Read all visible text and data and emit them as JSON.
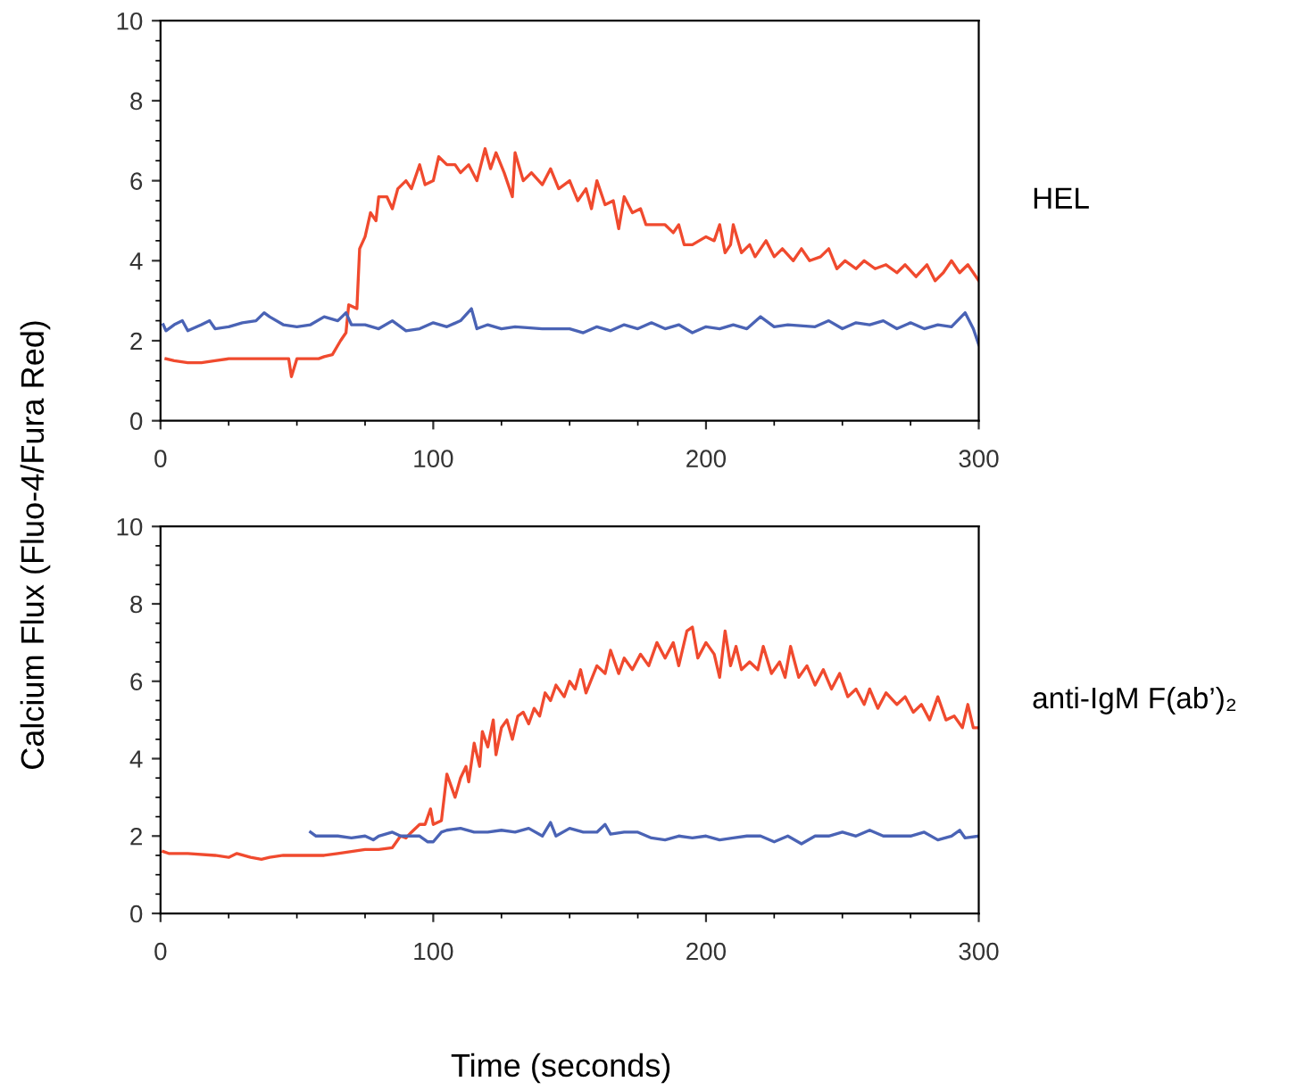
{
  "chart_data": [
    {
      "type": "line",
      "ylabel": "Calcium Flux (Fluo-4/Fura Red)",
      "annotations": [
        "HEL"
      ],
      "xlim": [
        0,
        300
      ],
      "xticks": [
        0,
        100,
        200,
        300
      ],
      "ylim": [
        0,
        10
      ],
      "yticks": [
        0,
        2,
        4,
        6,
        8,
        10
      ],
      "grid": false,
      "marker": "none",
      "line_style": "solid",
      "series": [
        {
          "color": "#f04a2e",
          "x": [
            2,
            5,
            10,
            15,
            20,
            25,
            30,
            40,
            47,
            48,
            50,
            58,
            60,
            63,
            66,
            68,
            69,
            72,
            73,
            75,
            77,
            79,
            80,
            83,
            85,
            87,
            90,
            92,
            95,
            97,
            100,
            102,
            105,
            108,
            110,
            113,
            116,
            119,
            121,
            123,
            126,
            129,
            130,
            133,
            136,
            140,
            143,
            146,
            150,
            153,
            156,
            158,
            160,
            163,
            166,
            168,
            170,
            173,
            176,
            178,
            181,
            185,
            188,
            190,
            192,
            195,
            200,
            203,
            205,
            207,
            209,
            210,
            213,
            216,
            218,
            222,
            225,
            228,
            232,
            235,
            238,
            242,
            245,
            248,
            251,
            255,
            258,
            262,
            266,
            270,
            273,
            277,
            281,
            284,
            287,
            290,
            293,
            296,
            300
          ],
          "values": [
            1.55,
            1.5,
            1.45,
            1.45,
            1.5,
            1.55,
            1.55,
            1.55,
            1.55,
            1.1,
            1.55,
            1.55,
            1.6,
            1.65,
            2.0,
            2.2,
            2.9,
            2.8,
            4.3,
            4.6,
            5.2,
            5.0,
            5.6,
            5.6,
            5.3,
            5.8,
            6.0,
            5.8,
            6.4,
            5.9,
            6.0,
            6.6,
            6.4,
            6.4,
            6.2,
            6.4,
            6.0,
            6.8,
            6.3,
            6.7,
            6.2,
            5.6,
            6.7,
            6.0,
            6.2,
            5.9,
            6.3,
            5.8,
            6.0,
            5.5,
            5.8,
            5.3,
            6.0,
            5.4,
            5.5,
            4.8,
            5.6,
            5.2,
            5.3,
            4.9,
            4.9,
            4.9,
            4.7,
            4.9,
            4.4,
            4.4,
            4.6,
            4.5,
            4.9,
            4.2,
            4.4,
            4.9,
            4.2,
            4.4,
            4.1,
            4.5,
            4.1,
            4.3,
            4.0,
            4.3,
            4.0,
            4.1,
            4.3,
            3.8,
            4.0,
            3.8,
            4.0,
            3.8,
            3.9,
            3.7,
            3.9,
            3.6,
            3.9,
            3.5,
            3.7,
            4.0,
            3.7,
            3.9,
            3.5
          ]
        },
        {
          "color": "#4a63b5",
          "x": [
            1,
            2,
            5,
            8,
            10,
            15,
            18,
            20,
            25,
            30,
            35,
            38,
            40,
            45,
            50,
            55,
            60,
            65,
            68,
            70,
            75,
            80,
            85,
            90,
            95,
            100,
            105,
            110,
            114,
            116,
            120,
            125,
            130,
            140,
            150,
            155,
            160,
            165,
            170,
            175,
            180,
            185,
            190,
            195,
            200,
            205,
            210,
            215,
            220,
            225,
            230,
            240,
            245,
            250,
            255,
            260,
            265,
            270,
            275,
            280,
            285,
            290,
            295,
            298,
            300
          ],
          "values": [
            2.4,
            2.25,
            2.4,
            2.5,
            2.25,
            2.4,
            2.5,
            2.3,
            2.35,
            2.45,
            2.5,
            2.7,
            2.6,
            2.4,
            2.35,
            2.4,
            2.6,
            2.5,
            2.7,
            2.4,
            2.4,
            2.3,
            2.5,
            2.25,
            2.3,
            2.45,
            2.35,
            2.5,
            2.8,
            2.3,
            2.4,
            2.3,
            2.35,
            2.3,
            2.3,
            2.2,
            2.35,
            2.25,
            2.4,
            2.3,
            2.45,
            2.3,
            2.4,
            2.2,
            2.35,
            2.3,
            2.4,
            2.3,
            2.6,
            2.35,
            2.4,
            2.35,
            2.5,
            2.3,
            2.45,
            2.4,
            2.5,
            2.3,
            2.45,
            2.3,
            2.4,
            2.35,
            2.7,
            2.3,
            1.9
          ]
        }
      ]
    },
    {
      "type": "line",
      "xlabel": "Time (seconds)",
      "annotations": [
        "anti-IgM F(ab’)₂"
      ],
      "xlim": [
        0,
        300
      ],
      "xticks": [
        0,
        100,
        200,
        300
      ],
      "ylim": [
        0,
        10
      ],
      "yticks": [
        0,
        2,
        4,
        6,
        8,
        10
      ],
      "grid": false,
      "marker": "none",
      "line_style": "solid",
      "series": [
        {
          "color": "#f04a2e",
          "x": [
            1,
            3,
            10,
            20,
            25,
            28,
            33,
            37,
            40,
            45,
            55,
            60,
            65,
            70,
            75,
            80,
            85,
            86,
            88,
            90,
            92,
            95,
            97,
            99,
            100,
            103,
            105,
            108,
            110,
            112,
            113,
            115,
            117,
            118,
            120,
            122,
            123,
            125,
            127,
            129,
            131,
            133,
            135,
            137,
            139,
            141,
            143,
            145,
            148,
            150,
            152,
            154,
            156,
            160,
            163,
            165,
            168,
            170,
            173,
            176,
            179,
            182,
            185,
            188,
            190,
            193,
            195,
            197,
            200,
            203,
            205,
            207,
            209,
            211,
            213,
            216,
            219,
            221,
            224,
            227,
            229,
            231,
            234,
            237,
            240,
            243,
            246,
            249,
            252,
            255,
            258,
            260,
            263,
            266,
            270,
            273,
            276,
            279,
            282,
            285,
            288,
            291,
            294,
            296,
            298,
            300
          ],
          "values": [
            1.6,
            1.55,
            1.55,
            1.5,
            1.45,
            1.55,
            1.45,
            1.4,
            1.45,
            1.5,
            1.5,
            1.5,
            1.55,
            1.6,
            1.65,
            1.65,
            1.7,
            1.8,
            2.0,
            1.95,
            2.1,
            2.3,
            2.3,
            2.7,
            2.3,
            2.4,
            3.6,
            3.0,
            3.5,
            3.8,
            3.4,
            4.4,
            3.8,
            4.7,
            4.3,
            5.0,
            4.1,
            4.8,
            5.0,
            4.5,
            5.1,
            5.2,
            4.9,
            5.3,
            5.1,
            5.7,
            5.5,
            5.9,
            5.6,
            6.0,
            5.8,
            6.3,
            5.7,
            6.4,
            6.2,
            6.8,
            6.2,
            6.6,
            6.3,
            6.7,
            6.4,
            7.0,
            6.6,
            7.0,
            6.4,
            7.3,
            7.4,
            6.6,
            7.0,
            6.7,
            6.1,
            7.3,
            6.4,
            6.9,
            6.3,
            6.5,
            6.3,
            6.9,
            6.2,
            6.5,
            6.1,
            6.9,
            6.1,
            6.4,
            5.9,
            6.3,
            5.8,
            6.2,
            5.6,
            5.8,
            5.4,
            5.8,
            5.3,
            5.7,
            5.4,
            5.6,
            5.2,
            5.4,
            5.0,
            5.6,
            5.0,
            5.1,
            4.8,
            5.4,
            4.8,
            4.8
          ]
        },
        {
          "color": "#4a63b5",
          "x": [
            55,
            57,
            60,
            65,
            70,
            75,
            78,
            80,
            85,
            88,
            90,
            95,
            98,
            100,
            103,
            105,
            110,
            115,
            120,
            125,
            130,
            135,
            140,
            143,
            145,
            150,
            155,
            160,
            163,
            165,
            170,
            175,
            180,
            185,
            190,
            195,
            200,
            205,
            210,
            215,
            220,
            225,
            230,
            235,
            240,
            245,
            250,
            255,
            260,
            265,
            270,
            275,
            280,
            285,
            290,
            293,
            295,
            300
          ],
          "values": [
            2.1,
            2.0,
            2.0,
            2.0,
            1.95,
            2.0,
            1.9,
            2.0,
            2.1,
            2.0,
            2.0,
            2.0,
            1.85,
            1.85,
            2.1,
            2.15,
            2.2,
            2.1,
            2.1,
            2.15,
            2.1,
            2.2,
            2.0,
            2.35,
            2.0,
            2.2,
            2.1,
            2.1,
            2.3,
            2.05,
            2.1,
            2.1,
            1.95,
            1.9,
            2.0,
            1.95,
            2.0,
            1.9,
            1.95,
            2.0,
            2.0,
            1.85,
            2.0,
            1.8,
            2.0,
            2.0,
            2.1,
            2.0,
            2.15,
            2.0,
            2.0,
            2.0,
            2.1,
            1.9,
            2.0,
            2.15,
            1.95,
            2.0
          ]
        }
      ]
    }
  ]
}
